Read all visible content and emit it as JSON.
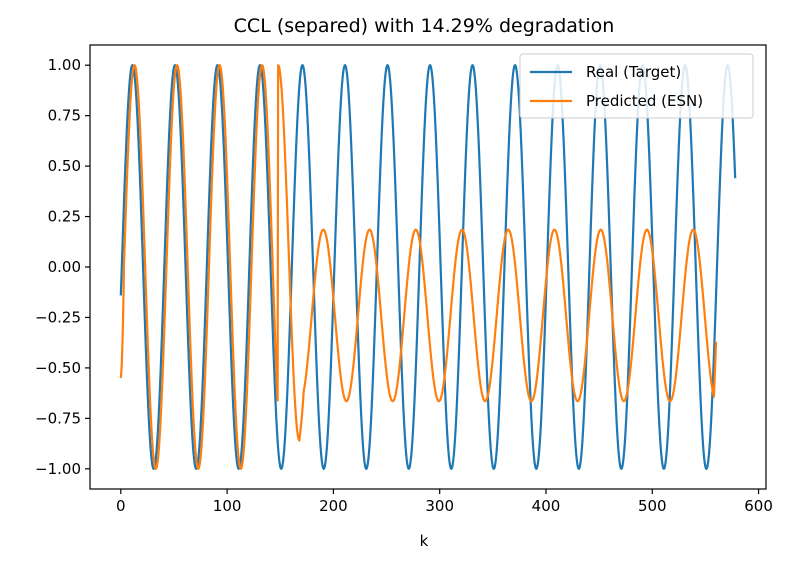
{
  "chart_data": {
    "type": "line",
    "title": "CCL (separed) with 14.29% degradation",
    "xlabel": "k",
    "ylabel": "",
    "xlim": [
      -29,
      607
    ],
    "ylim": [
      -1.1,
      1.1
    ],
    "xticks": [
      0,
      100,
      200,
      300,
      400,
      500,
      600
    ],
    "xtick_labels": [
      "0",
      "100",
      "200",
      "300",
      "400",
      "500",
      "600"
    ],
    "yticks": [
      -1.0,
      -0.75,
      -0.5,
      -0.25,
      0.0,
      0.25,
      0.5,
      0.75,
      1.0
    ],
    "ytick_labels": [
      "−1.00",
      "−0.75",
      "−0.50",
      "−0.25",
      "0.00",
      "0.25",
      "0.50",
      "0.75",
      "1.00"
    ],
    "grid": false,
    "legend_position": "top-right",
    "series": [
      {
        "name": "Real (Target)",
        "color": "#1f77b4",
        "model": "cosine",
        "k_range": [
          0,
          578
        ],
        "period": 40,
        "phase": 10.9,
        "amplitude": 1.0,
        "offset": 0.0
      },
      {
        "name": "Predicted (ESN)",
        "color": "#ff7f0e",
        "model": "piecewise-cosine",
        "k_range": [
          0,
          560
        ],
        "segments": [
          {
            "k_start": 0,
            "k_end": 148,
            "period": 40,
            "phase": 12.9,
            "amplitude": 1.0,
            "offset": 0.0,
            "start_value": -0.55
          },
          {
            "k_start": 148,
            "k_end": 168,
            "period": 40,
            "from_value": 1.0,
            "to_value": -0.86
          },
          {
            "k_start": 168,
            "k_end": 560,
            "period": 43.5,
            "phase": 16.5,
            "amplitude": 0.425,
            "offset": -0.24,
            "end_value": -0.37
          }
        ]
      }
    ]
  }
}
